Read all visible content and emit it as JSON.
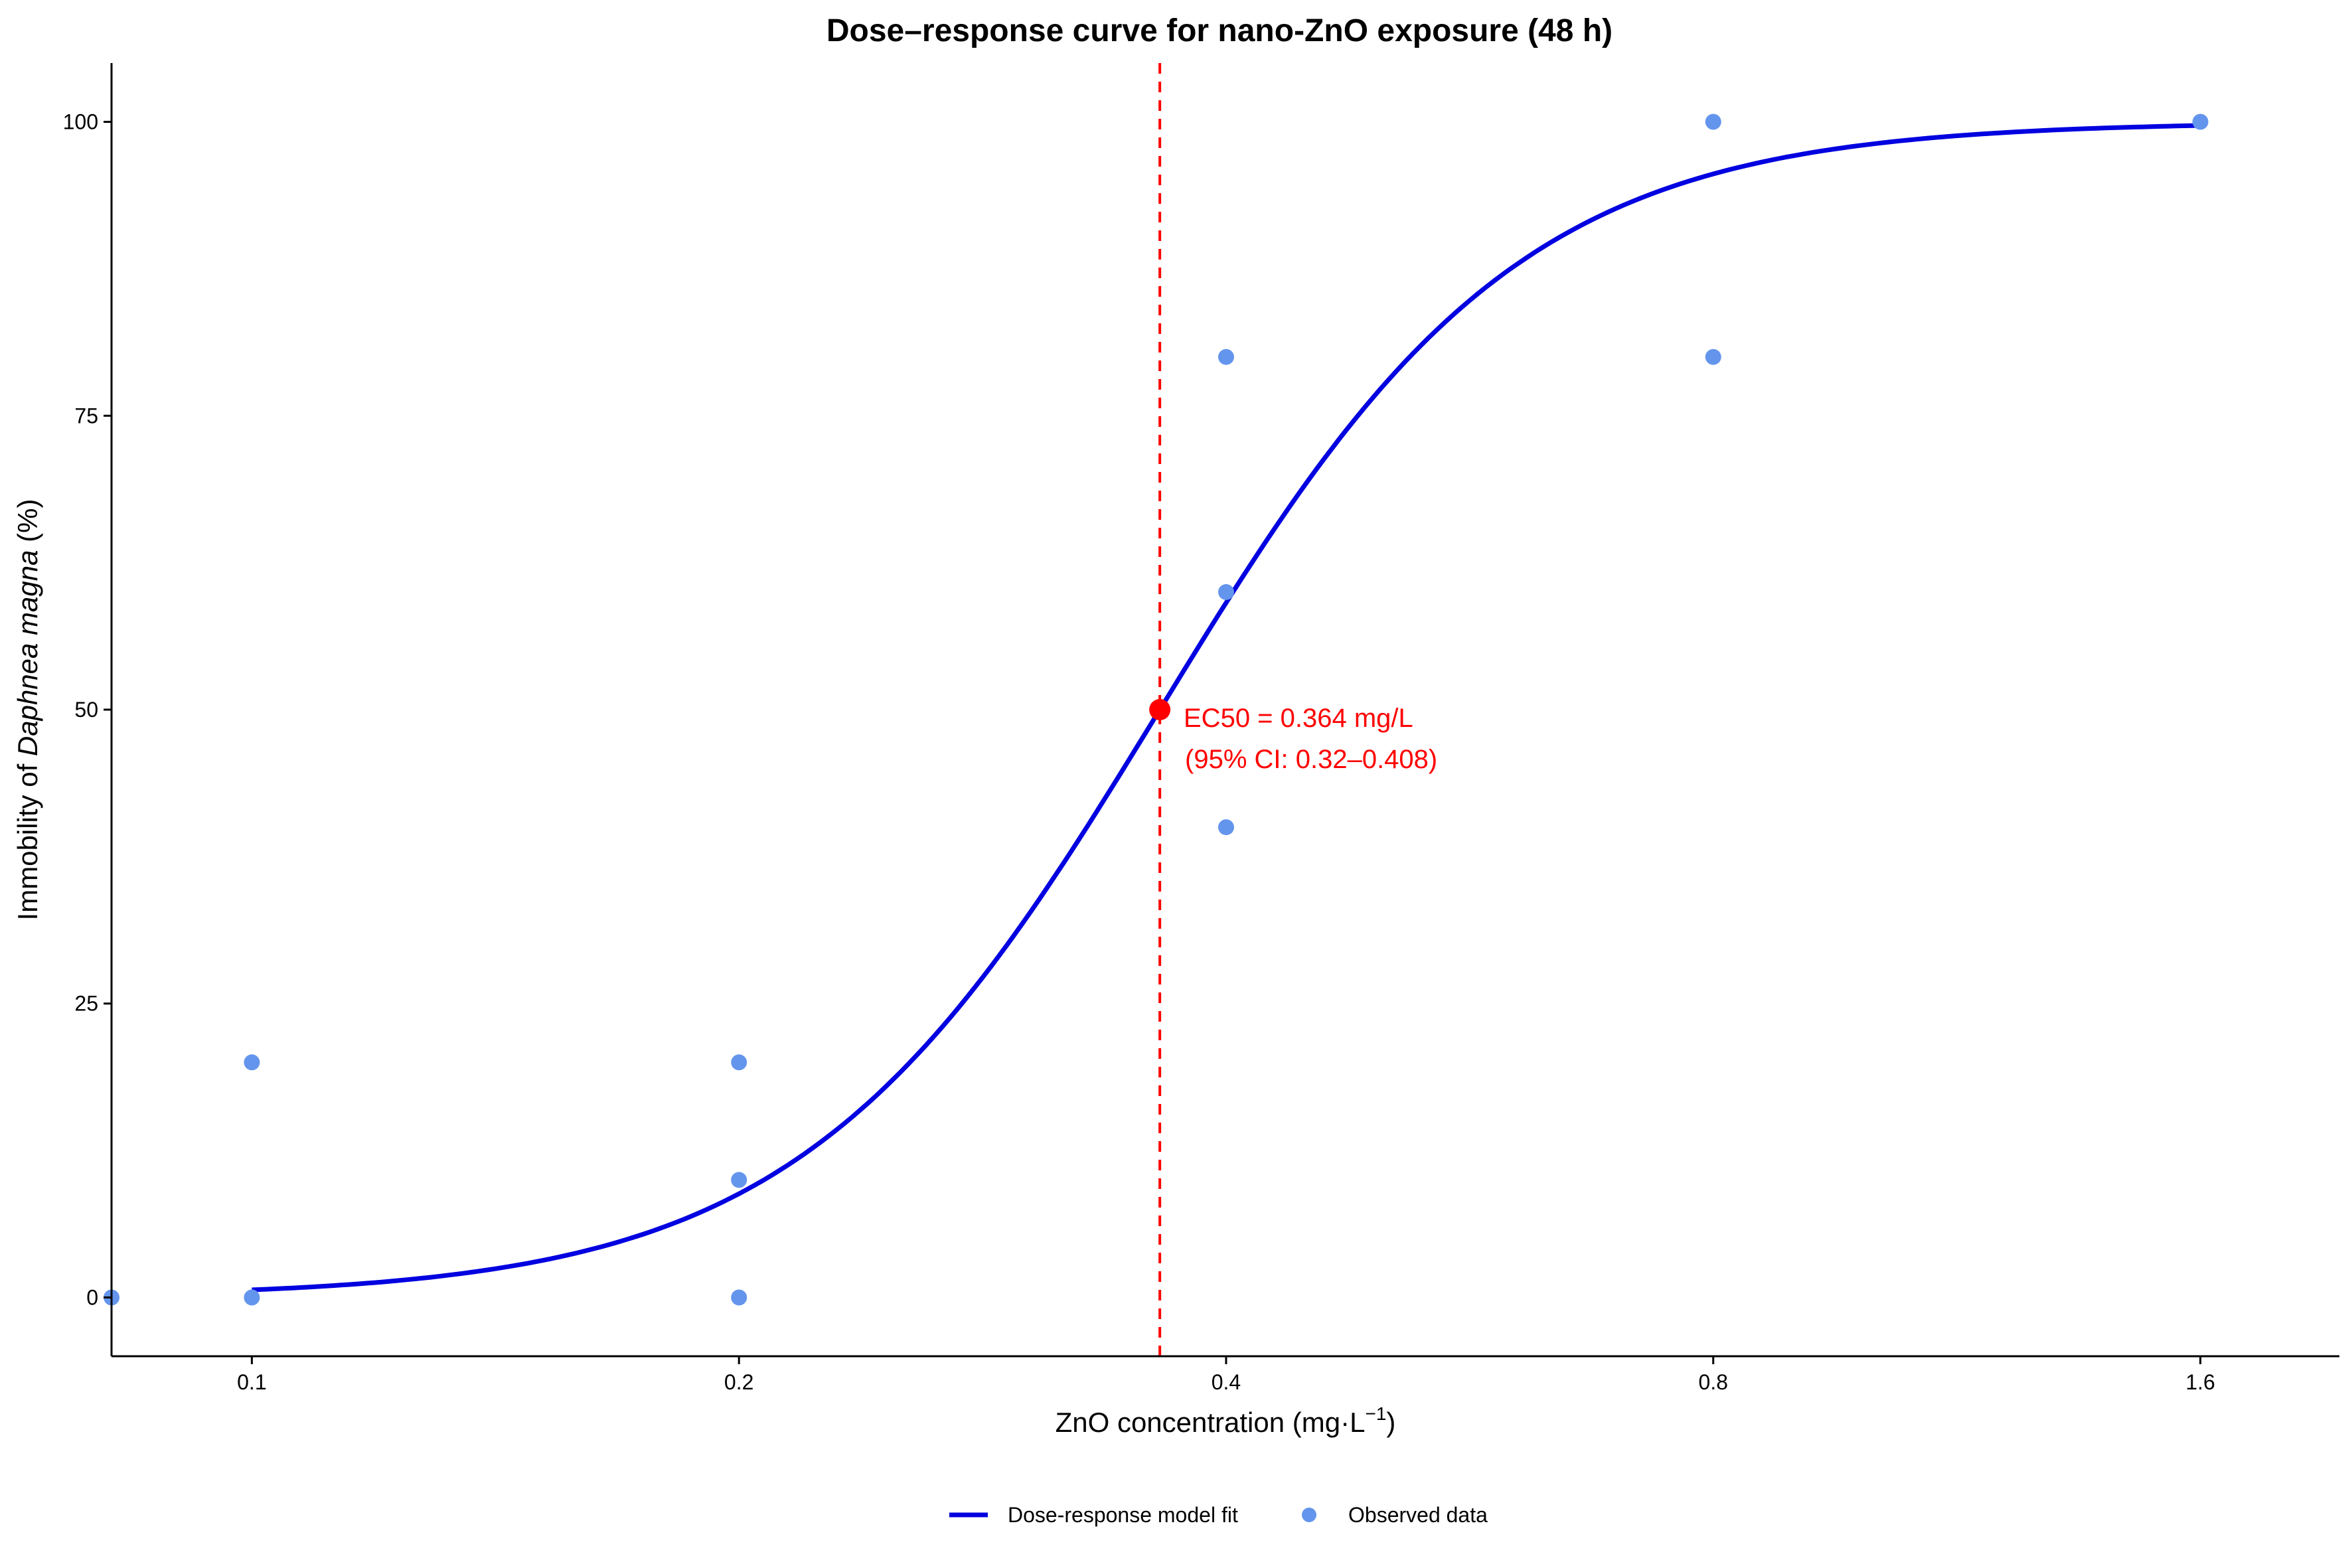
{
  "chart_data": {
    "type": "scatter",
    "title": "Dose–response curve for nano-ZnO exposure (48 h)",
    "xlabel": "ZnO concentration (mg·L⁻¹)",
    "xlabel_parts": {
      "main": "ZnO concentration (mg·L",
      "sup": "−1",
      "close": ")"
    },
    "ylabel_parts": {
      "before": "Immobility of ",
      "italic": "Daphnea magna",
      "after": " (%)"
    },
    "x_scale": "log",
    "xlim": [
      0.0819,
      1.95
    ],
    "ylim": [
      -5,
      105
    ],
    "x_ticks": [
      0.1,
      0.2,
      0.4,
      0.8,
      1.6
    ],
    "x_tick_labels": [
      "0.1",
      "0.2",
      "0.4",
      "0.8",
      "1.6"
    ],
    "y_ticks": [
      0,
      25,
      50,
      75,
      100
    ],
    "y_tick_labels": [
      "0",
      "25",
      "50",
      "75",
      "100"
    ],
    "grid": false,
    "legend_position": "bottom",
    "series": [
      {
        "name": "Dose-response model fit",
        "kind": "line",
        "color": "#0000e0",
        "model": {
          "form": "log-logistic",
          "ec50": 0.364,
          "slope": 3.9,
          "lower": 0,
          "upper": 100
        },
        "x_range": [
          0.1,
          1.6
        ]
      },
      {
        "name": "Observed data",
        "kind": "points",
        "color": "#6495ed",
        "points": [
          {
            "x": 0.0819,
            "y": 0
          },
          {
            "x": 0.1,
            "y": 0
          },
          {
            "x": 0.1,
            "y": 20
          },
          {
            "x": 0.2,
            "y": 0
          },
          {
            "x": 0.2,
            "y": 10
          },
          {
            "x": 0.2,
            "y": 20
          },
          {
            "x": 0.4,
            "y": 40
          },
          {
            "x": 0.4,
            "y": 60
          },
          {
            "x": 0.4,
            "y": 80
          },
          {
            "x": 0.8,
            "y": 80
          },
          {
            "x": 0.8,
            "y": 100
          },
          {
            "x": 1.6,
            "y": 100
          }
        ]
      }
    ],
    "ec50": {
      "x": 0.364,
      "y": 50,
      "color": "#ff0000",
      "line_style": "dashed",
      "label_line1": "EC50 = 0.364 mg/L",
      "label_line2": "(95% CI: 0.32–0.408)"
    }
  }
}
